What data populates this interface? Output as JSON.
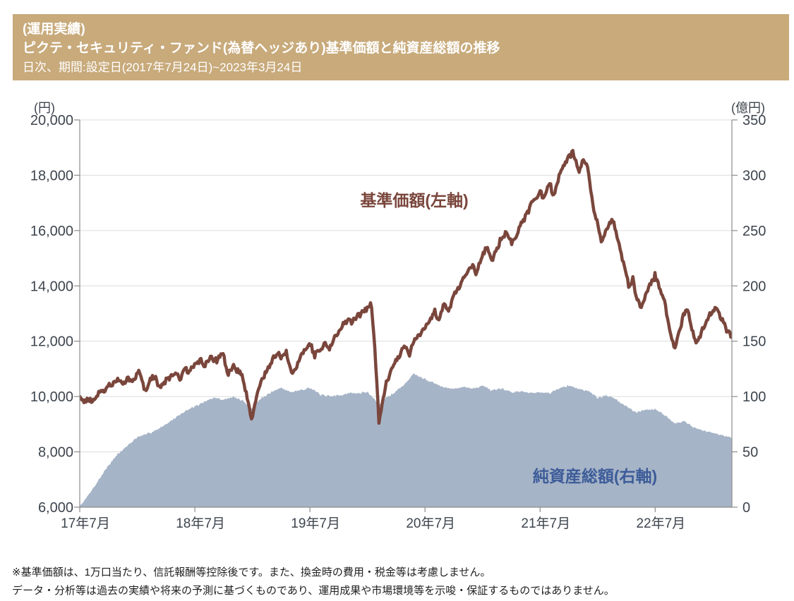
{
  "header": {
    "bg_color": "#c8aa7b",
    "text_color": "#ffffff",
    "line1": "(運用実績)",
    "line2": "ピクテ・セキュリティ・ファンド(為替ヘッジあり)基準価額と純資産総額の推移",
    "line3": "日次、期間:設定日(2017年7月24日)~2023年3月24日"
  },
  "footnotes": [
    "※基準価額は、1万口当たり、信託報酬等控除後です。また、換金時の費用・税金等は考慮しません。",
    "データ・分析等は過去の実績や将来の予測に基づくものであり、運用成果や市場環境等を示唆・保証するものではありません。"
  ],
  "chart_data": {
    "type": "line+area",
    "grid": true,
    "colors": {
      "grid": "#dcdcdc",
      "axis": "#8c8c8c",
      "tick_text": "#3d454e",
      "nav_line": "#7a463c",
      "area_fill": "#a6b4c7",
      "area_label": "#3d5c99"
    },
    "left_axis": {
      "unit_label": "(円)",
      "min": 6000,
      "max": 20000,
      "tick_step": 2000,
      "ticks": [
        {
          "v": 20000,
          "label": "20,000"
        },
        {
          "v": 18000,
          "label": "18,000"
        },
        {
          "v": 16000,
          "label": "16,000"
        },
        {
          "v": 14000,
          "label": "14,000"
        },
        {
          "v": 12000,
          "label": "12,000"
        },
        {
          "v": 10000,
          "label": "10,000"
        },
        {
          "v": 8000,
          "label": "8,000"
        },
        {
          "v": 6000,
          "label": "6,000"
        }
      ]
    },
    "right_axis": {
      "unit_label": "(億円)",
      "min": 0,
      "max": 350,
      "tick_step": 50,
      "ticks": [
        {
          "v": 350,
          "label": "350"
        },
        {
          "v": 300,
          "label": "300"
        },
        {
          "v": 250,
          "label": "250"
        },
        {
          "v": 200,
          "label": "200"
        },
        {
          "v": 150,
          "label": "150"
        },
        {
          "v": 100,
          "label": "100"
        },
        {
          "v": 50,
          "label": "50"
        },
        {
          "v": 0,
          "label": "0"
        }
      ]
    },
    "x_axis": {
      "start_date": "2017-07-24",
      "end_date": "2023-03-24",
      "total_months": 68,
      "ticks": [
        {
          "t": 0,
          "label": "17年7月"
        },
        {
          "t": 12,
          "label": "18年7月"
        },
        {
          "t": 24,
          "label": "19年7月"
        },
        {
          "t": 36,
          "label": "20年7月"
        },
        {
          "t": 48,
          "label": "21年7月"
        },
        {
          "t": 60,
          "label": "22年7月"
        }
      ]
    },
    "series": [
      {
        "name": "基準価額(左軸)",
        "axis": "left",
        "style": "line",
        "units": "円",
        "anchors_note": "t = months since 2017-07-24, v = 基準価額(円)",
        "anchors": [
          [
            0,
            10000
          ],
          [
            0.4,
            9820
          ],
          [
            1,
            9900
          ],
          [
            1.5,
            9850
          ],
          [
            2,
            10120
          ],
          [
            3,
            10360
          ],
          [
            4,
            10560
          ],
          [
            4.4,
            10450
          ],
          [
            5,
            10680
          ],
          [
            5.5,
            10560
          ],
          [
            6.2,
            10940
          ],
          [
            6.8,
            10150
          ],
          [
            7.3,
            10600
          ],
          [
            7.8,
            10700
          ],
          [
            8.3,
            10380
          ],
          [
            9,
            10560
          ],
          [
            10,
            10850
          ],
          [
            10.4,
            10650
          ],
          [
            11,
            11020
          ],
          [
            11.4,
            10820
          ],
          [
            12,
            11180
          ],
          [
            12.5,
            11320
          ],
          [
            13,
            11150
          ],
          [
            13.6,
            11380
          ],
          [
            14.3,
            11300
          ],
          [
            14.9,
            11650
          ],
          [
            15.4,
            10820
          ],
          [
            16,
            11080
          ],
          [
            16.5,
            10900
          ],
          [
            17,
            10750
          ],
          [
            17.9,
            9150
          ],
          [
            18.6,
            10250
          ],
          [
            19,
            10600
          ],
          [
            19.5,
            10950
          ],
          [
            20,
            11250
          ],
          [
            20.6,
            11560
          ],
          [
            21,
            11420
          ],
          [
            21.5,
            11600
          ],
          [
            22.1,
            10820
          ],
          [
            22.5,
            11000
          ],
          [
            23,
            11450
          ],
          [
            23.6,
            11800
          ],
          [
            24,
            11960
          ],
          [
            24.5,
            11480
          ],
          [
            25,
            11700
          ],
          [
            25.6,
            11900
          ],
          [
            26,
            11750
          ],
          [
            26.6,
            12150
          ],
          [
            27,
            12300
          ],
          [
            27.6,
            12650
          ],
          [
            28,
            12800
          ],
          [
            28.4,
            12650
          ],
          [
            29,
            12950
          ],
          [
            29.5,
            13050
          ],
          [
            30,
            13200
          ],
          [
            30.4,
            13350
          ],
          [
            30.8,
            11600
          ],
          [
            31.2,
            9050
          ],
          [
            31.6,
            9900
          ],
          [
            32,
            10550
          ],
          [
            32.5,
            11000
          ],
          [
            33,
            11350
          ],
          [
            33.4,
            11550
          ],
          [
            34,
            11850
          ],
          [
            34.3,
            11450
          ],
          [
            35,
            12150
          ],
          [
            35.5,
            12300
          ],
          [
            36,
            12450
          ],
          [
            36.6,
            12850
          ],
          [
            37,
            13100
          ],
          [
            37.4,
            12650
          ],
          [
            38,
            13350
          ],
          [
            38.5,
            13050
          ],
          [
            39,
            13650
          ],
          [
            39.5,
            13900
          ],
          [
            40,
            14250
          ],
          [
            40.5,
            14550
          ],
          [
            41,
            14700
          ],
          [
            41.3,
            14400
          ],
          [
            42,
            15100
          ],
          [
            42.4,
            15400
          ],
          [
            43,
            14950
          ],
          [
            43.6,
            15400
          ],
          [
            44,
            15750
          ],
          [
            44.5,
            15950
          ],
          [
            45,
            15550
          ],
          [
            45.6,
            15850
          ],
          [
            46,
            16250
          ],
          [
            46.5,
            16500
          ],
          [
            47,
            16900
          ],
          [
            47.5,
            17150
          ],
          [
            48,
            17400
          ],
          [
            48.3,
            17150
          ],
          [
            49,
            17750
          ],
          [
            49.4,
            17200
          ],
          [
            50,
            17950
          ],
          [
            50.5,
            18350
          ],
          [
            51,
            18650
          ],
          [
            51.4,
            18850
          ],
          [
            51.8,
            18350
          ],
          [
            52.1,
            18050
          ],
          [
            52.5,
            18600
          ],
          [
            53,
            18250
          ],
          [
            53.5,
            16900
          ],
          [
            54,
            16300
          ],
          [
            54.4,
            15550
          ],
          [
            55,
            16150
          ],
          [
            55.6,
            16400
          ],
          [
            56,
            15850
          ],
          [
            56.5,
            15050
          ],
          [
            57,
            14450
          ],
          [
            57.3,
            13950
          ],
          [
            57.7,
            14250
          ],
          [
            58,
            13600
          ],
          [
            58.6,
            13250
          ],
          [
            59,
            13650
          ],
          [
            59.5,
            14050
          ],
          [
            60,
            14400
          ],
          [
            60.5,
            13900
          ],
          [
            61,
            13350
          ],
          [
            61.5,
            12450
          ],
          [
            62,
            11700
          ],
          [
            62.5,
            12350
          ],
          [
            63,
            12950
          ],
          [
            63.4,
            13100
          ],
          [
            64,
            12250
          ],
          [
            64.3,
            11950
          ],
          [
            65,
            12450
          ],
          [
            65.5,
            12900
          ],
          [
            66,
            13100
          ],
          [
            66.4,
            13250
          ],
          [
            67,
            12750
          ],
          [
            67.5,
            12400
          ],
          [
            68,
            12200
          ]
        ]
      },
      {
        "name": "純資産総額(右軸)",
        "axis": "right",
        "style": "area",
        "units": "億円",
        "anchors_note": "t = months since 2017-07-24, v = 純資産総額(億円)",
        "anchors": [
          [
            0,
            1
          ],
          [
            0.5,
            6
          ],
          [
            1,
            12
          ],
          [
            2,
            25
          ],
          [
            3,
            38
          ],
          [
            4,
            48
          ],
          [
            5,
            56
          ],
          [
            6,
            63
          ],
          [
            7,
            66
          ],
          [
            8,
            70
          ],
          [
            9,
            75
          ],
          [
            10,
            81
          ],
          [
            11,
            87
          ],
          [
            12,
            91
          ],
          [
            13,
            95
          ],
          [
            14,
            99
          ],
          [
            15,
            97
          ],
          [
            16,
            100
          ],
          [
            17,
            96
          ],
          [
            17.9,
            89
          ],
          [
            18.6,
            96
          ],
          [
            19,
            99
          ],
          [
            20,
            104
          ],
          [
            21,
            108
          ],
          [
            22,
            104
          ],
          [
            23,
            106
          ],
          [
            24,
            108
          ],
          [
            25,
            102
          ],
          [
            26,
            100
          ],
          [
            27,
            101
          ],
          [
            28,
            103
          ],
          [
            29,
            103
          ],
          [
            30,
            104
          ],
          [
            30.8,
            97
          ],
          [
            31.2,
            92
          ],
          [
            32,
            99
          ],
          [
            33,
            105
          ],
          [
            34,
            112
          ],
          [
            34.8,
            121
          ],
          [
            35.5,
            118
          ],
          [
            36,
            116
          ],
          [
            37,
            112
          ],
          [
            38,
            108
          ],
          [
            39,
            107
          ],
          [
            40,
            109
          ],
          [
            41,
            107
          ],
          [
            42,
            110
          ],
          [
            43,
            105
          ],
          [
            44,
            107
          ],
          [
            45,
            104
          ],
          [
            46,
            105
          ],
          [
            47,
            103
          ],
          [
            48,
            104
          ],
          [
            49,
            103
          ],
          [
            50,
            108
          ],
          [
            51,
            110
          ],
          [
            52,
            107
          ],
          [
            53,
            105
          ],
          [
            54,
            99
          ],
          [
            55,
            101
          ],
          [
            56,
            97
          ],
          [
            57,
            91
          ],
          [
            58,
            86
          ],
          [
            59,
            88
          ],
          [
            60,
            89
          ],
          [
            61,
            83
          ],
          [
            62,
            76
          ],
          [
            63,
            78
          ],
          [
            64,
            72
          ],
          [
            65,
            69
          ],
          [
            66,
            67
          ],
          [
            67,
            65
          ],
          [
            68,
            63
          ]
        ]
      }
    ]
  }
}
